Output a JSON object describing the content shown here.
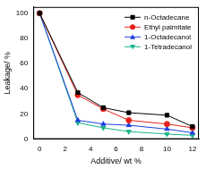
{
  "chart_data": {
    "type": "line",
    "x_label": "Additive/ wt %",
    "y_label": "Leakage/ %",
    "x": [
      0,
      3,
      5,
      7,
      10,
      12
    ],
    "series": [
      {
        "name": "n-Octadecane",
        "color": "#000000",
        "marker": "square",
        "values": [
          100,
          37,
          25,
          21,
          19,
          10
        ]
      },
      {
        "name": "Ethyl palmitate",
        "color": "#e8211b",
        "marker": "circle",
        "values": [
          100,
          35,
          24,
          15,
          12,
          9
        ]
      },
      {
        "name": "1-Octadecanol",
        "color": "#1f3fe0",
        "marker": "triangle",
        "values": [
          100,
          15,
          12,
          11,
          8,
          5
        ]
      },
      {
        "name": "1-Tetradecanol",
        "color": "#19b58a",
        "marker": "triangle_down",
        "values": [
          100,
          13,
          9,
          6,
          4,
          3
        ]
      }
    ],
    "xlim": [
      -0.5,
      12.5
    ],
    "ylim": [
      0,
      105
    ],
    "xticks": [
      0,
      2,
      4,
      6,
      8,
      10,
      12
    ],
    "yticks": [
      0,
      20,
      40,
      60,
      80,
      100
    ],
    "legend": "upper right",
    "grid": false
  }
}
